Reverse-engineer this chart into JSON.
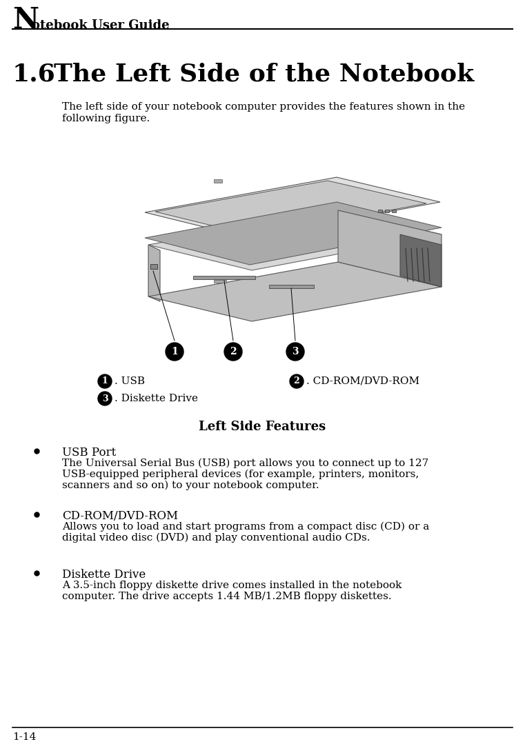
{
  "header_big_N": "N",
  "header_rest": "otebook User Guide",
  "section": "1.6",
  "section_title": "The Left Side of the Notebook",
  "intro_line1": "The left side of your notebook computer provides the features shown in the",
  "intro_line2": "following figure.",
  "leg1_num": "1",
  "leg1_label": ". USB",
  "leg2_num": "2",
  "leg2_label": ". CD-ROM/DVD-ROM",
  "leg3_num": "3",
  "leg3_label": ". Diskette Drive",
  "legend_title": "Left Side Features",
  "bullet1_title": "USB Port",
  "bullet1_body1": "The Universal Serial Bus (USB) port allows you to connect up to 127",
  "bullet1_body2": "USB-equipped peripheral devices (for example, printers, monitors,",
  "bullet1_body3": "scanners and so on) to your notebook computer.",
  "bullet2_title": "CD-ROM/DVD-ROM",
  "bullet2_body1": "Allows you to load and start programs from a compact disc (CD) or a",
  "bullet2_body2": "digital video disc (DVD) and play conventional audio CDs.",
  "bullet3_title": "Diskette Drive",
  "bullet3_body1": "A 3.5-inch floppy diskette drive comes installed in the notebook",
  "bullet3_body2": "computer. The drive accepts 1.44 MB/1.2MB floppy diskettes.",
  "footer": "1-14",
  "bg": "#ffffff",
  "fg": "#000000",
  "header_fontsize": 13,
  "header_N_fontsize": 30,
  "section_fontsize": 26,
  "body_fontsize": 11,
  "bullet_title_fontsize": 12,
  "legend_title_fontsize": 13
}
